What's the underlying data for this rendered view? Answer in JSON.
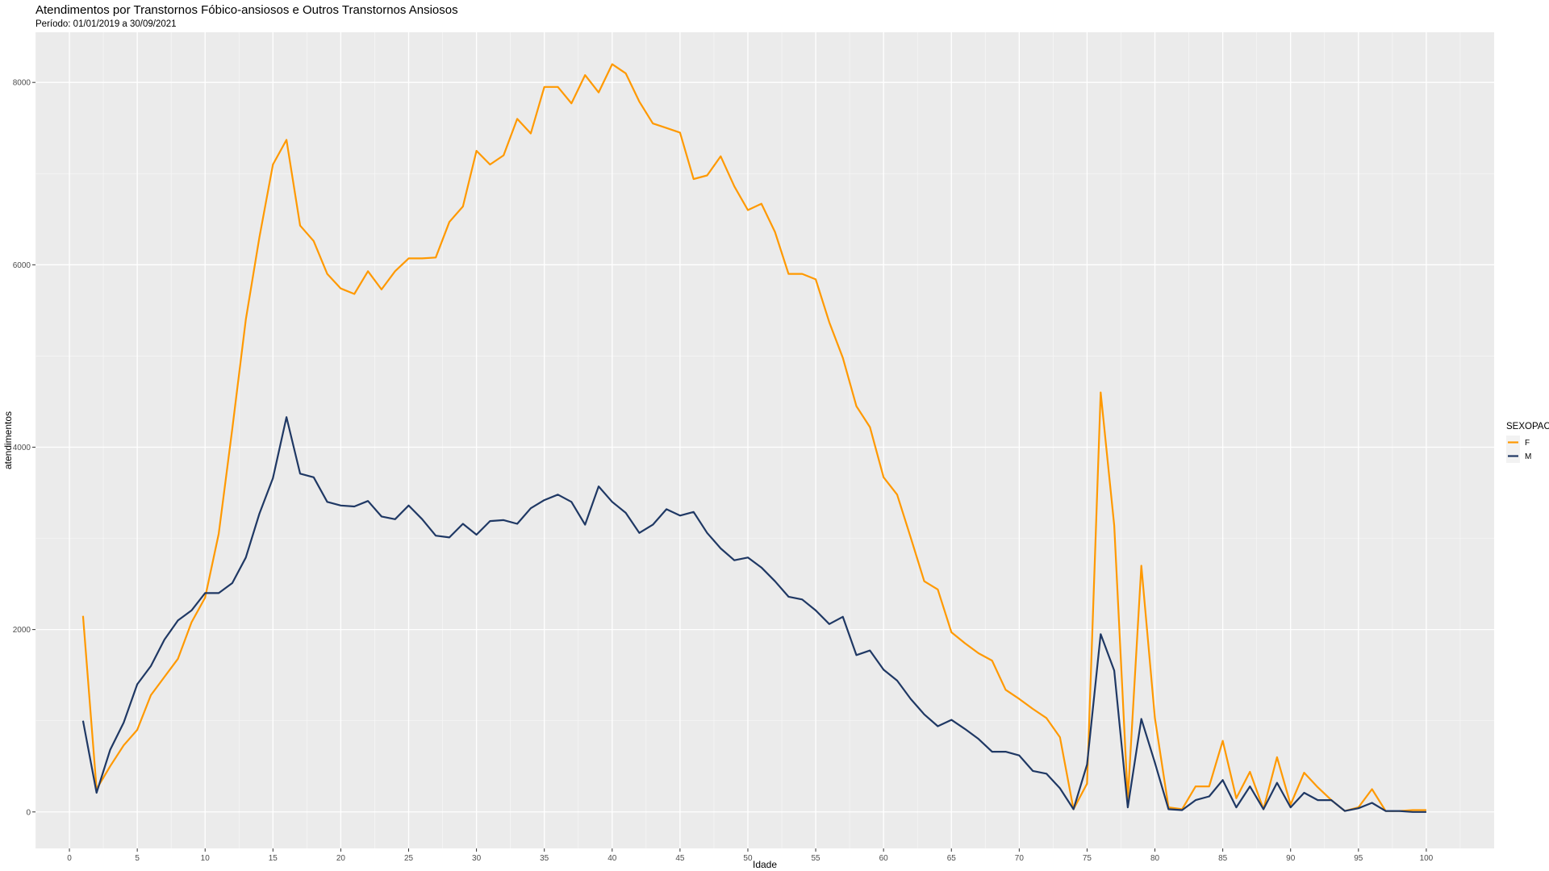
{
  "chart_data": {
    "type": "line",
    "title": "Atendimentos por Transtornos Fóbico-ansiosos e Outros Transtornos Ansiosos",
    "subtitle": "Período: 01/01/2019 a 30/09/2021",
    "xlabel": "Idade",
    "ylabel": "atendimentos",
    "xlim": [
      -2.5,
      105
    ],
    "ylim": [
      -400,
      8550
    ],
    "x_ticks": [
      0,
      5,
      10,
      15,
      20,
      25,
      30,
      35,
      40,
      45,
      50,
      55,
      60,
      65,
      70,
      75,
      80,
      85,
      90,
      95,
      100
    ],
    "y_ticks": [
      0,
      2000,
      4000,
      6000,
      8000
    ],
    "y_tick_labels": [
      "0",
      "2000",
      "4000",
      "6000",
      "8000"
    ],
    "grid": true,
    "background": "#ebebeb",
    "legend": {
      "title": "SEXOPAC",
      "position": "right"
    },
    "x": [
      1,
      2,
      3,
      4,
      5,
      6,
      7,
      8,
      9,
      10,
      11,
      12,
      13,
      14,
      15,
      16,
      17,
      18,
      19,
      20,
      21,
      22,
      23,
      24,
      25,
      26,
      27,
      28,
      29,
      30,
      31,
      32,
      33,
      34,
      35,
      36,
      37,
      38,
      39,
      40,
      41,
      42,
      43,
      44,
      45,
      46,
      47,
      48,
      49,
      50,
      51,
      52,
      53,
      54,
      55,
      56,
      57,
      58,
      59,
      60,
      61,
      62,
      63,
      64,
      65,
      66,
      67,
      68,
      69,
      70,
      71,
      72,
      73,
      74,
      75,
      76,
      77,
      78,
      79,
      80,
      81,
      82,
      83,
      84,
      85,
      86,
      87,
      88,
      89,
      90,
      91,
      92,
      93,
      94,
      95,
      96,
      97,
      98,
      99,
      100
    ],
    "series": [
      {
        "name": "F",
        "color": "#ff9900",
        "values": [
          2150,
          250,
          500,
          730,
          900,
          1280,
          1480,
          1680,
          2080,
          2350,
          3050,
          4200,
          5400,
          6300,
          7100,
          7370,
          6430,
          6260,
          5900,
          5740,
          5680,
          5930,
          5730,
          5930,
          6070,
          6070,
          6080,
          6470,
          6640,
          7250,
          7100,
          7200,
          7600,
          7440,
          7950,
          7950,
          7770,
          8080,
          7890,
          8200,
          8100,
          7790,
          7550,
          7500,
          7450,
          6940,
          6980,
          7190,
          6860,
          6600,
          6670,
          6360,
          5900,
          5900,
          5840,
          5370,
          4980,
          4450,
          4220,
          3670,
          3480,
          3010,
          2530,
          2440,
          1970,
          1850,
          1740,
          1660,
          1340,
          1240,
          1130,
          1030,
          820,
          30,
          310,
          4600,
          3140,
          140,
          2700,
          1030,
          50,
          30,
          280,
          280,
          780,
          150,
          440,
          30,
          600,
          80,
          430,
          270,
          130,
          10,
          50,
          250,
          10,
          10,
          20,
          20
        ]
      },
      {
        "name": "M",
        "color": "#1f3864",
        "values": [
          1000,
          210,
          680,
          980,
          1400,
          1600,
          1890,
          2100,
          2210,
          2400,
          2400,
          2510,
          2790,
          3270,
          3660,
          4330,
          3710,
          3670,
          3400,
          3360,
          3350,
          3410,
          3240,
          3210,
          3360,
          3210,
          3030,
          3010,
          3160,
          3040,
          3190,
          3200,
          3160,
          3330,
          3420,
          3480,
          3400,
          3150,
          3570,
          3400,
          3280,
          3060,
          3150,
          3320,
          3250,
          3290,
          3060,
          2890,
          2760,
          2790,
          2680,
          2530,
          2360,
          2330,
          2210,
          2060,
          2140,
          1720,
          1770,
          1560,
          1440,
          1240,
          1070,
          940,
          1010,
          910,
          800,
          660,
          660,
          620,
          450,
          420,
          260,
          30,
          520,
          1950,
          1550,
          50,
          1020,
          540,
          30,
          20,
          130,
          170,
          350,
          50,
          280,
          30,
          320,
          50,
          210,
          130,
          130,
          10,
          40,
          100,
          10,
          10,
          0,
          0
        ]
      }
    ]
  }
}
